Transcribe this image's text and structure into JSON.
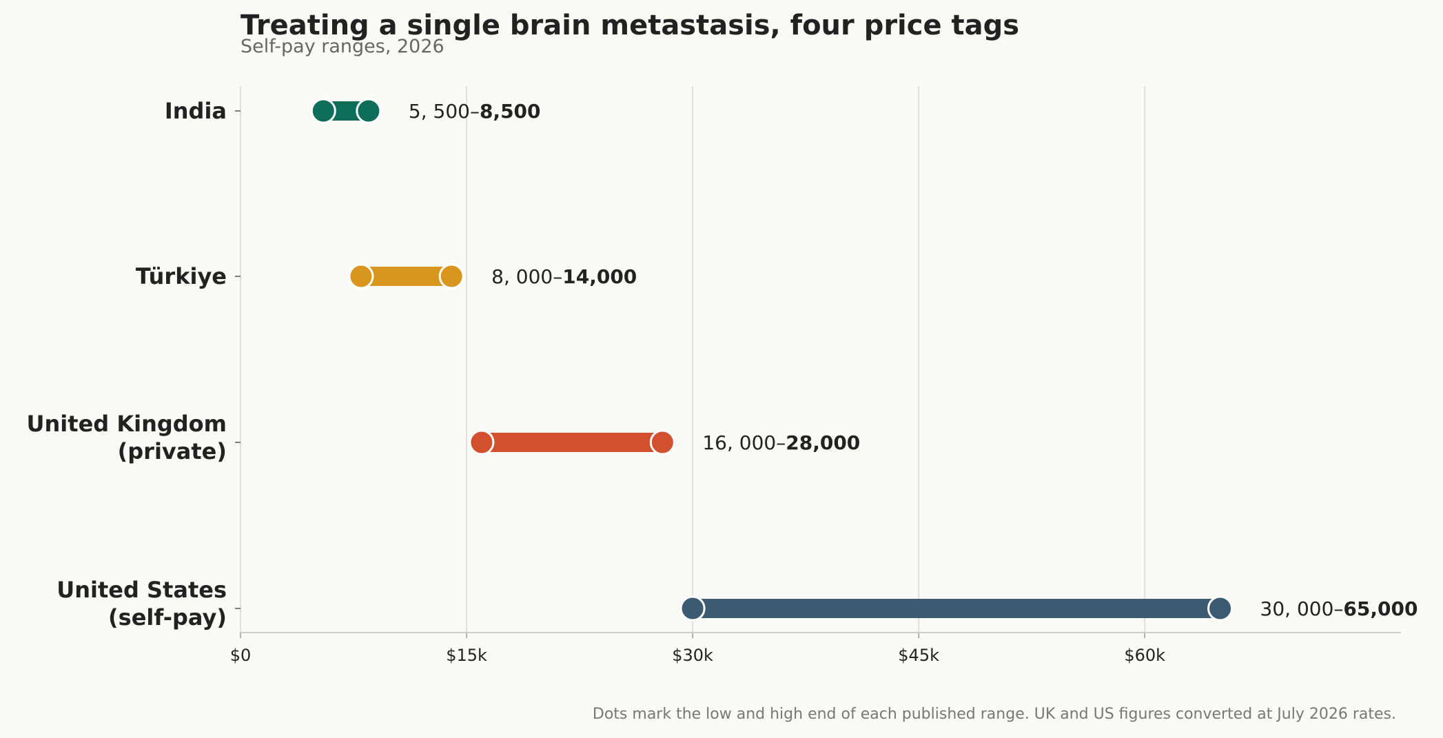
{
  "title": "Treating a single brain metastasis, four price tags",
  "subtitle": "Self-pay ranges, 2026",
  "footnote": "Dots mark the low and high end of each published range. UK and US figures converted at July 2026 rates.",
  "chart_data": {
    "type": "dumbbell",
    "title": "Treating a single brain metastasis, four price tags",
    "subtitle": "Self-pay ranges, 2026",
    "xlabel": "",
    "ylabel": "",
    "xlim": [
      0,
      77000
    ],
    "x_ticks": [
      0,
      15000,
      30000,
      45000,
      60000
    ],
    "x_tick_labels": [
      "$0",
      "$15k",
      "$30k",
      "$45k",
      "$60k"
    ],
    "grid": "vertical",
    "series": [
      {
        "category": [
          "India"
        ],
        "low": 5500,
        "high": 8500,
        "color": "#0e6e5a",
        "label_low": "5, 500–",
        "label_high": "8,500"
      },
      {
        "category": [
          "Türkiye"
        ],
        "low": 8000,
        "high": 14000,
        "color": "#d9961e",
        "label_low": "8, 000–",
        "label_high": "14,000"
      },
      {
        "category": [
          "United Kingdom",
          "(private)"
        ],
        "low": 16000,
        "high": 28000,
        "color": "#d3502e",
        "label_low": "16, 000–",
        "label_high": "28,000"
      },
      {
        "category": [
          "United States",
          "(self-pay)"
        ],
        "low": 30000,
        "high": 65000,
        "color": "#3d5a73",
        "label_low": "30, 000–",
        "label_high": "65,000"
      }
    ]
  }
}
